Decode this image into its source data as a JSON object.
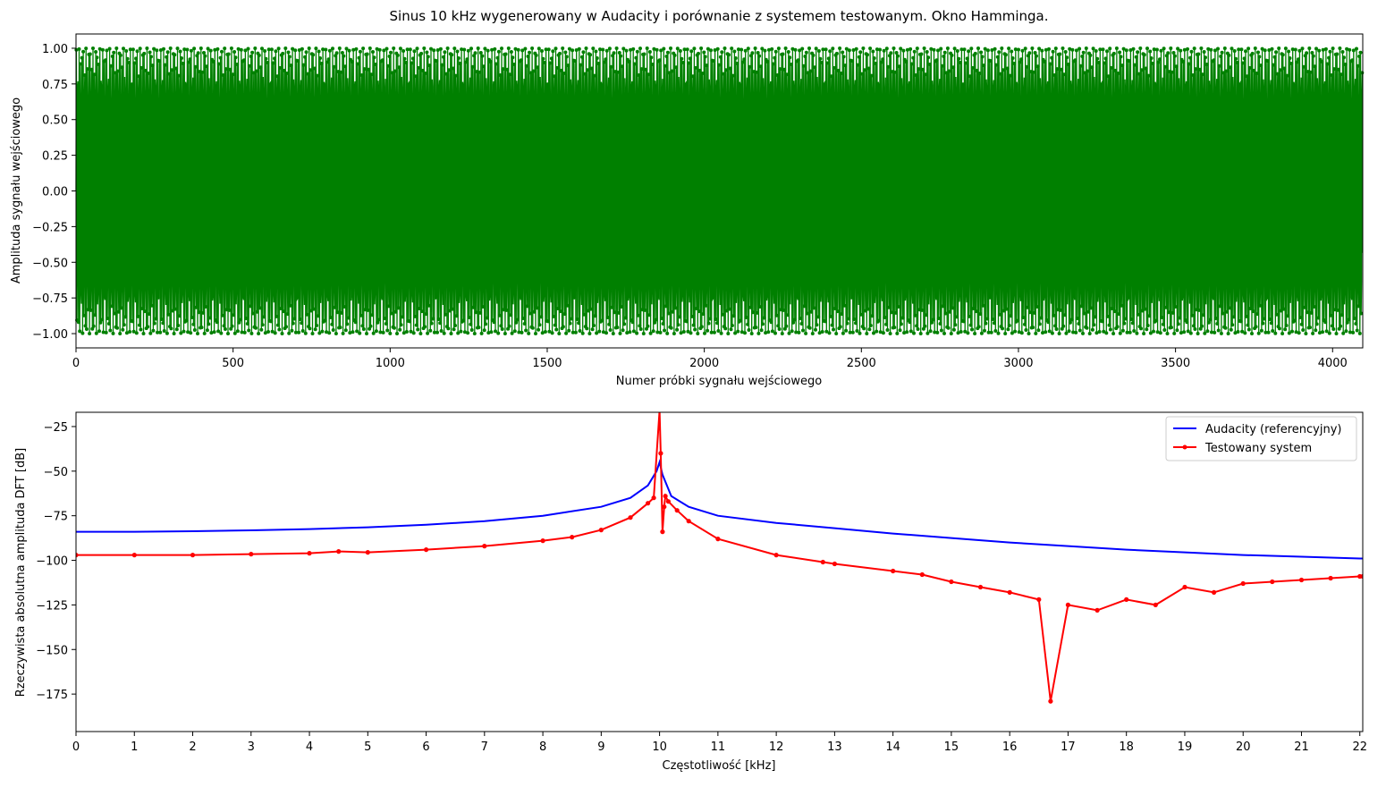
{
  "chart_data": [
    {
      "type": "line",
      "title": "Sinus 10 kHz wygenerowany w Audacity i porównanie z systemem testowanym. Okno Hamminga.",
      "xlabel": "Numer próbki sygnału wejściowego",
      "ylabel": "Amplituda sygnału wejściowego",
      "xlim": [
        0,
        4096
      ],
      "ylim": [
        -1.1,
        1.1
      ],
      "xticks": [
        0,
        500,
        1000,
        1500,
        2000,
        2500,
        3000,
        3500,
        4000
      ],
      "yticks": [
        -1.0,
        -0.75,
        -0.5,
        -0.25,
        0.0,
        0.25,
        0.5,
        0.75,
        1.0
      ],
      "ytick_labels": [
        "−1.00",
        "−0.75",
        "−0.50",
        "−0.25",
        "0.00",
        "0.25",
        "0.50",
        "0.75",
        "1.00"
      ],
      "grid": false,
      "series": [
        {
          "color": "#008000",
          "marker": "dot",
          "signal": {
            "kind": "sine",
            "frequency_hz": 10000,
            "sample_rate_hz": 44100,
            "amplitude": 1.0,
            "samples": 4096
          }
        }
      ]
    },
    {
      "type": "line",
      "title": "",
      "xlabel": "Częstotliwość [kHz]",
      "ylabel": "Rzeczywista absolutna amplituda DFT [dB]",
      "xlim": [
        0,
        22.05
      ],
      "ylim": [
        -196,
        -17
      ],
      "xticks": [
        0,
        1,
        2,
        3,
        4,
        5,
        6,
        7,
        8,
        9,
        10,
        11,
        12,
        13,
        14,
        15,
        16,
        17,
        18,
        19,
        20,
        21,
        22
      ],
      "yticks": [
        -175,
        -150,
        -125,
        -100,
        -75,
        -50,
        -25
      ],
      "ytick_labels": [
        "−175",
        "−150",
        "−125",
        "−100",
        "−75",
        "−50",
        "−25"
      ],
      "grid": false,
      "legend": {
        "position": "top-right"
      },
      "series": [
        {
          "name": "Audacity (referencyjny)",
          "color": "#0000ff",
          "marker": "none",
          "x": [
            0,
            1,
            2,
            3,
            4,
            5,
            6,
            7,
            8,
            9,
            9.5,
            9.8,
            9.95,
            10.0,
            10.05,
            10.2,
            10.5,
            11,
            12,
            13,
            14,
            15,
            16,
            17,
            18,
            19,
            20,
            21,
            22,
            22.05
          ],
          "y": [
            -84,
            -84,
            -83.7,
            -83.2,
            -82.5,
            -81.5,
            -80.1,
            -78,
            -75,
            -70,
            -65,
            -58,
            -50,
            -45,
            -52,
            -64,
            -70,
            -75,
            -79,
            -82,
            -85,
            -87.5,
            -90,
            -92,
            -94,
            -95.5,
            -97,
            -98,
            -99,
            -99
          ]
        },
        {
          "name": "Testowany system",
          "color": "#ff0000",
          "marker": "dot",
          "x": [
            0,
            1,
            2,
            3,
            4,
            4.5,
            5,
            6,
            7,
            8,
            8.5,
            9,
            9.5,
            9.8,
            9.9,
            10.0,
            10.02,
            10.05,
            10.08,
            10.1,
            10.15,
            10.3,
            10.5,
            11,
            12,
            12.8,
            13,
            14,
            14.5,
            15,
            15.5,
            16,
            16.5,
            16.7,
            17,
            17.5,
            18,
            18.5,
            19,
            19.5,
            20,
            20.5,
            21,
            21.5,
            22,
            22.05
          ],
          "y": [
            -97,
            -97,
            -97,
            -96.5,
            -96,
            -95,
            -95.5,
            -94,
            -92,
            -89,
            -87,
            -83,
            -76,
            -68,
            -65,
            -16,
            -40,
            -84,
            -70,
            -64,
            -67,
            -72,
            -78,
            -88,
            -97,
            -101,
            -102,
            -106,
            -108,
            -112,
            -115,
            -118,
            -122,
            -179,
            -125,
            -128,
            -122,
            -125,
            -115,
            -118,
            -113,
            -112,
            -111,
            -110,
            -109,
            -109
          ]
        }
      ]
    }
  ]
}
